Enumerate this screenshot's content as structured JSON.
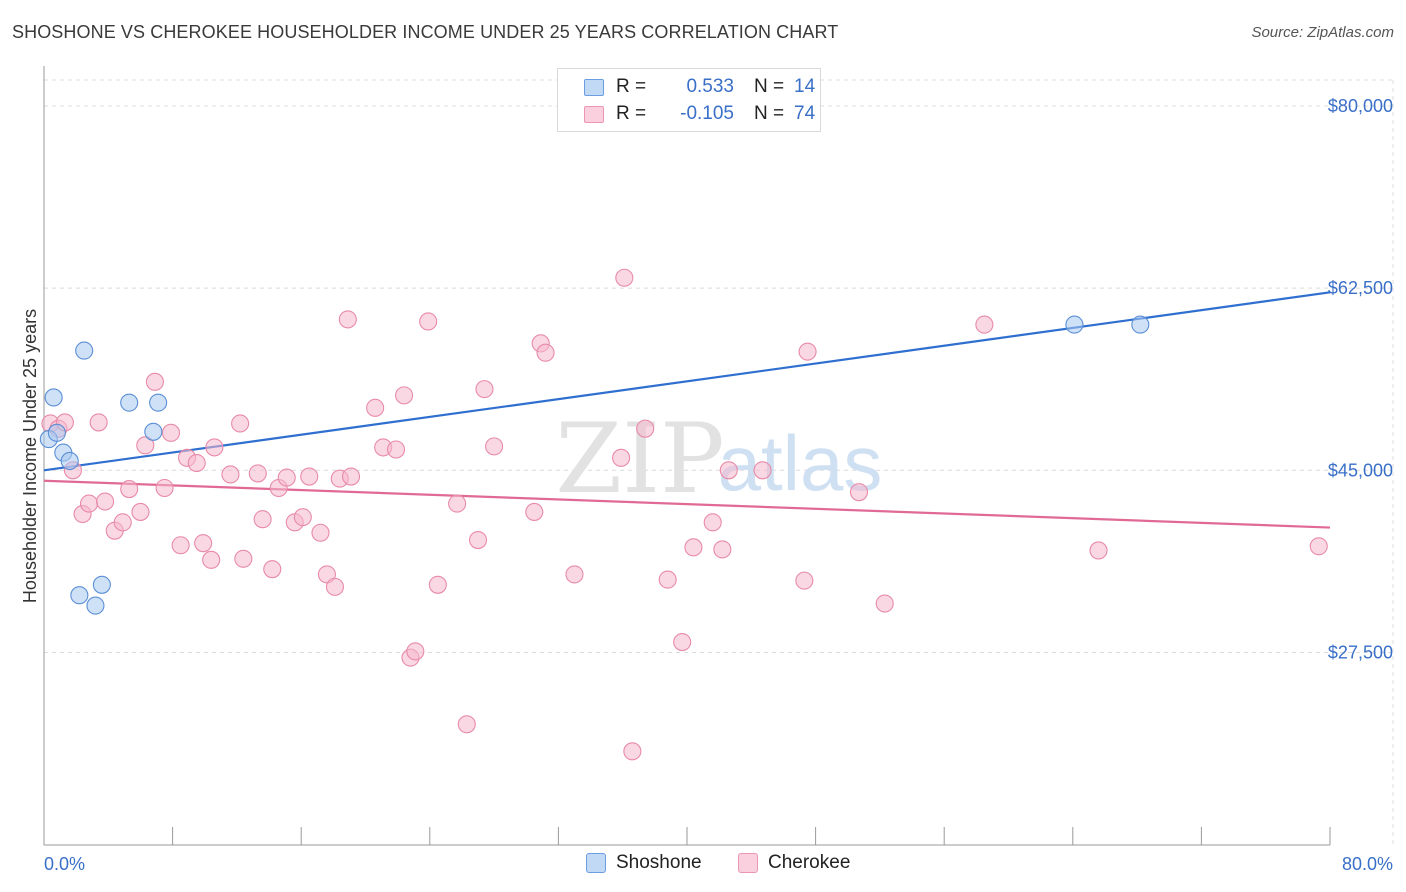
{
  "title": "SHOSHONE VS CHEROKEE HOUSEHOLDER INCOME UNDER 25 YEARS CORRELATION CHART",
  "source": "Source: ZipAtlas.com",
  "watermark": {
    "zip": "ZIP",
    "atlas": "atlas"
  },
  "legend": {
    "rows": [
      {
        "r_label": "R =",
        "r_value": "0.533",
        "n_label": "N =",
        "n_value": "14",
        "color": "#a8c8f0"
      },
      {
        "r_label": "R =",
        "r_value": "-0.105",
        "n_label": "N =",
        "n_value": "74",
        "color": "#f5b8cc"
      }
    ]
  },
  "bottom_legend": [
    {
      "label": "Shoshone",
      "color": "#a8c8f0"
    },
    {
      "label": "Cherokee",
      "color": "#f5b8cc"
    }
  ],
  "chart_data": {
    "type": "scatter",
    "title": "SHOSHONE VS CHEROKEE HOUSEHOLDER INCOME UNDER 25 YEARS CORRELATION CHART",
    "xlabel": "",
    "ylabel": "Householder Income Under 25 years",
    "xlim": [
      0,
      80
    ],
    "ylim": [
      9000,
      82500
    ],
    "x_tick_labels": [
      "0.0%",
      "80.0%"
    ],
    "y_ticks": [
      27500,
      45000,
      62500,
      80000
    ],
    "y_tick_labels": [
      "$27,500",
      "$45,000",
      "$62,500",
      "$80,000"
    ],
    "grid": true,
    "legend_position": "top-center",
    "series": [
      {
        "name": "Shoshone",
        "color": "#a8c8f0",
        "stroke": "#5b8fd6",
        "line_color": "#2f6fd0",
        "trend": {
          "x": [
            0,
            80
          ],
          "y": [
            45000,
            62100
          ]
        },
        "points": [
          {
            "x": 0.3,
            "y": 48000
          },
          {
            "x": 0.6,
            "y": 52000
          },
          {
            "x": 0.8,
            "y": 48600
          },
          {
            "x": 1.2,
            "y": 46700
          },
          {
            "x": 1.6,
            "y": 45900
          },
          {
            "x": 2.2,
            "y": 33000
          },
          {
            "x": 2.5,
            "y": 56500
          },
          {
            "x": 3.2,
            "y": 32000
          },
          {
            "x": 3.6,
            "y": 34000
          },
          {
            "x": 5.3,
            "y": 51500
          },
          {
            "x": 6.8,
            "y": 48700
          },
          {
            "x": 7.1,
            "y": 51500
          },
          {
            "x": 64.1,
            "y": 59000
          },
          {
            "x": 68.2,
            "y": 59000
          }
        ]
      },
      {
        "name": "Cherokee",
        "color": "#f5b8cc",
        "stroke": "#e88aa8",
        "line_color": "#e06a95",
        "trend": {
          "x": [
            0,
            80
          ],
          "y": [
            44000,
            39500
          ]
        },
        "points": [
          {
            "x": 0.4,
            "y": 49500
          },
          {
            "x": 0.9,
            "y": 49000
          },
          {
            "x": 1.3,
            "y": 49600
          },
          {
            "x": 1.8,
            "y": 45000
          },
          {
            "x": 2.4,
            "y": 40800
          },
          {
            "x": 2.8,
            "y": 41800
          },
          {
            "x": 3.4,
            "y": 49600
          },
          {
            "x": 3.8,
            "y": 42000
          },
          {
            "x": 4.4,
            "y": 39200
          },
          {
            "x": 4.9,
            "y": 40000
          },
          {
            "x": 5.3,
            "y": 43200
          },
          {
            "x": 6.0,
            "y": 41000
          },
          {
            "x": 6.3,
            "y": 47400
          },
          {
            "x": 6.9,
            "y": 53500
          },
          {
            "x": 7.5,
            "y": 43300
          },
          {
            "x": 7.9,
            "y": 48600
          },
          {
            "x": 8.5,
            "y": 37800
          },
          {
            "x": 8.9,
            "y": 46200
          },
          {
            "x": 9.5,
            "y": 45700
          },
          {
            "x": 9.9,
            "y": 38000
          },
          {
            "x": 10.4,
            "y": 36400
          },
          {
            "x": 10.6,
            "y": 47200
          },
          {
            "x": 11.6,
            "y": 44600
          },
          {
            "x": 12.2,
            "y": 49500
          },
          {
            "x": 12.4,
            "y": 36500
          },
          {
            "x": 13.3,
            "y": 44700
          },
          {
            "x": 13.6,
            "y": 40300
          },
          {
            "x": 14.2,
            "y": 35500
          },
          {
            "x": 14.6,
            "y": 43300
          },
          {
            "x": 15.1,
            "y": 44300
          },
          {
            "x": 15.6,
            "y": 40000
          },
          {
            "x": 16.1,
            "y": 40500
          },
          {
            "x": 16.5,
            "y": 44400
          },
          {
            "x": 17.2,
            "y": 39000
          },
          {
            "x": 17.6,
            "y": 35000
          },
          {
            "x": 18.1,
            "y": 33800
          },
          {
            "x": 18.4,
            "y": 44200
          },
          {
            "x": 18.9,
            "y": 59500
          },
          {
            "x": 19.1,
            "y": 44400
          },
          {
            "x": 20.6,
            "y": 51000
          },
          {
            "x": 21.1,
            "y": 47200
          },
          {
            "x": 21.9,
            "y": 47000
          },
          {
            "x": 22.4,
            "y": 52200
          },
          {
            "x": 22.8,
            "y": 27000
          },
          {
            "x": 23.1,
            "y": 27600
          },
          {
            "x": 23.9,
            "y": 59300
          },
          {
            "x": 24.5,
            "y": 34000
          },
          {
            "x": 25.7,
            "y": 41800
          },
          {
            "x": 26.3,
            "y": 20600
          },
          {
            "x": 27.0,
            "y": 38300
          },
          {
            "x": 27.4,
            "y": 52800
          },
          {
            "x": 28.0,
            "y": 47300
          },
          {
            "x": 30.5,
            "y": 41000
          },
          {
            "x": 30.9,
            "y": 57200
          },
          {
            "x": 31.2,
            "y": 56300
          },
          {
            "x": 33.0,
            "y": 35000
          },
          {
            "x": 35.9,
            "y": 46200
          },
          {
            "x": 36.1,
            "y": 63500
          },
          {
            "x": 36.6,
            "y": 18000
          },
          {
            "x": 37.4,
            "y": 49000
          },
          {
            "x": 38.8,
            "y": 34500
          },
          {
            "x": 39.7,
            "y": 28500
          },
          {
            "x": 40.4,
            "y": 37600
          },
          {
            "x": 41.6,
            "y": 40000
          },
          {
            "x": 42.2,
            "y": 37400
          },
          {
            "x": 42.6,
            "y": 45000
          },
          {
            "x": 44.7,
            "y": 45000
          },
          {
            "x": 47.3,
            "y": 34400
          },
          {
            "x": 47.5,
            "y": 56400
          },
          {
            "x": 50.7,
            "y": 42900
          },
          {
            "x": 52.3,
            "y": 32200
          },
          {
            "x": 58.5,
            "y": 59000
          },
          {
            "x": 65.6,
            "y": 37300
          },
          {
            "x": 79.3,
            "y": 37700
          }
        ]
      }
    ]
  }
}
